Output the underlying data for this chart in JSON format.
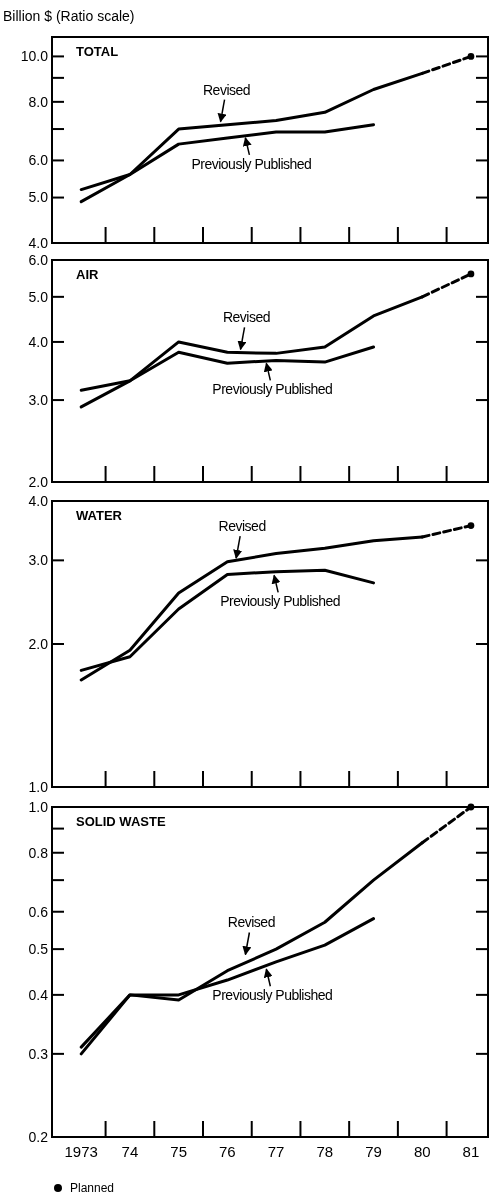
{
  "chart_data": [
    {
      "type": "line",
      "title": "TOTAL",
      "ylabel": "Billion $ (Ratio scale)",
      "log": true,
      "xlim": [
        1972.4,
        1981.35
      ],
      "ylim": [
        4,
        11
      ],
      "tick_labels": "y",
      "yticks": [
        {
          "value": 4,
          "label": "4.0"
        },
        {
          "value": 5,
          "label": "5.0"
        },
        {
          "value": 6,
          "label": "6.0"
        },
        {
          "value": 7,
          "label": null
        },
        {
          "value": 8,
          "label": "8.0"
        },
        {
          "value": 9,
          "label": null
        },
        {
          "value": 10,
          "label": "10.0"
        }
      ],
      "xticks": [
        {
          "value": 1973.5,
          "label": null
        },
        {
          "value": 1974.5,
          "label": null
        },
        {
          "value": 1975.5,
          "label": null
        },
        {
          "value": 1976.5,
          "label": null
        },
        {
          "value": 1977.5,
          "label": null
        },
        {
          "value": 1978.5,
          "label": null
        },
        {
          "value": 1979.5,
          "label": null
        },
        {
          "value": 1980.5,
          "label": null
        }
      ],
      "series": [
        {
          "type": "line",
          "color": "#000000",
          "x": [
            1973,
            1974,
            1975,
            1976,
            1977,
            1978,
            1979,
            1980
          ],
          "values": [
            4.9,
            5.6,
            7.0,
            7.15,
            7.3,
            7.6,
            8.5,
            9.2
          ]
        },
        {
          "type": "line",
          "color": "#000000",
          "x": [
            1973,
            1974,
            1975,
            1976,
            1977,
            1978,
            1979
          ],
          "values": [
            5.2,
            5.6,
            6.5,
            6.7,
            6.9,
            6.9,
            7.15
          ]
        },
        {
          "type": "line",
          "color": "#000000",
          "line_style": "dashed",
          "x": [
            1980,
            1981
          ],
          "values": [
            9.2,
            10.0
          ]
        },
        {
          "type": "scatter",
          "color": "#000000",
          "marker": "circle",
          "x": [
            1981
          ],
          "values": [
            10.0
          ]
        }
      ],
      "annotations": [
        {
          "text": "Revised",
          "x": 1975.86,
          "y": 7.15
        },
        {
          "text": "Previously Published",
          "x": 1976.37,
          "y": 6.8
        }
      ]
    },
    {
      "type": "line",
      "title": "AIR",
      "log": true,
      "xlim": [
        1972.4,
        1981.35
      ],
      "ylim": [
        2,
        6
      ],
      "tick_labels": "y",
      "yticks": [
        {
          "value": 2,
          "label": "2.0"
        },
        {
          "value": 3,
          "label": "3.0"
        },
        {
          "value": 4,
          "label": "4.0"
        },
        {
          "value": 5,
          "label": "5.0"
        },
        {
          "value": 6,
          "label": "6.0"
        }
      ],
      "xticks": [
        {
          "value": 1973.5,
          "label": null
        },
        {
          "value": 1974.5,
          "label": null
        },
        {
          "value": 1975.5,
          "label": null
        },
        {
          "value": 1976.5,
          "label": null
        },
        {
          "value": 1977.5,
          "label": null
        },
        {
          "value": 1978.5,
          "label": null
        },
        {
          "value": 1979.5,
          "label": null
        },
        {
          "value": 1980.5,
          "label": null
        }
      ],
      "series": [
        {
          "type": "line",
          "color": "#000000",
          "x": [
            1973,
            1974,
            1975,
            1976,
            1977,
            1978,
            1979,
            1980
          ],
          "values": [
            2.9,
            3.3,
            4.0,
            3.8,
            3.78,
            3.9,
            4.55,
            5.0
          ]
        },
        {
          "type": "line",
          "color": "#000000",
          "x": [
            1973,
            1974,
            1975,
            1976,
            1977,
            1978,
            1979
          ],
          "values": [
            3.15,
            3.3,
            3.8,
            3.6,
            3.65,
            3.62,
            3.9
          ]
        },
        {
          "type": "line",
          "color": "#000000",
          "line_style": "dashed",
          "x": [
            1980,
            1981
          ],
          "values": [
            5.0,
            5.6
          ]
        },
        {
          "type": "scatter",
          "color": "#000000",
          "marker": "circle",
          "x": [
            1981
          ],
          "values": [
            5.6
          ]
        }
      ],
      "annotations": [
        {
          "text": "Revised",
          "x": 1976.27,
          "y": 3.8
        },
        {
          "text": "Previously Published",
          "x": 1976.8,
          "y": 3.65
        }
      ]
    },
    {
      "type": "line",
      "title": "WATER",
      "log": true,
      "xlim": [
        1972.4,
        1981.35
      ],
      "ylim": [
        1,
        4
      ],
      "tick_labels": "y",
      "yticks": [
        {
          "value": 1,
          "label": "1.0"
        },
        {
          "value": 2,
          "label": "2.0"
        },
        {
          "value": 3,
          "label": "3.0"
        },
        {
          "value": 4,
          "label": "4.0"
        }
      ],
      "xticks": [
        {
          "value": 1973.5,
          "label": null
        },
        {
          "value": 1974.5,
          "label": null
        },
        {
          "value": 1975.5,
          "label": null
        },
        {
          "value": 1976.5,
          "label": null
        },
        {
          "value": 1977.5,
          "label": null
        },
        {
          "value": 1978.5,
          "label": null
        },
        {
          "value": 1979.5,
          "label": null
        },
        {
          "value": 1980.5,
          "label": null
        }
      ],
      "series": [
        {
          "type": "line",
          "color": "#000000",
          "x": [
            1973,
            1974,
            1975,
            1976,
            1977,
            1978,
            1979,
            1980
          ],
          "values": [
            1.68,
            1.94,
            2.56,
            2.98,
            3.1,
            3.18,
            3.3,
            3.36
          ]
        },
        {
          "type": "line",
          "color": "#000000",
          "x": [
            1973,
            1974,
            1975,
            1976,
            1977,
            1978,
            1979
          ],
          "values": [
            1.76,
            1.88,
            2.37,
            2.8,
            2.84,
            2.86,
            2.69
          ]
        },
        {
          "type": "line",
          "color": "#000000",
          "line_style": "dashed",
          "x": [
            1980,
            1981
          ],
          "values": [
            3.36,
            3.55
          ]
        },
        {
          "type": "scatter",
          "color": "#000000",
          "marker": "circle",
          "x": [
            1981
          ],
          "values": [
            3.55
          ]
        }
      ],
      "annotations": [
        {
          "text": "Revised",
          "x": 1976.18,
          "y": 2.99
        },
        {
          "text": "Previously Published",
          "x": 1976.96,
          "y": 2.83
        }
      ]
    },
    {
      "type": "line",
      "title": "SOLID WASTE",
      "log": true,
      "xlim": [
        1972.4,
        1981.35
      ],
      "ylim": [
        0.2,
        1.0
      ],
      "legend": "bottom left",
      "yticks": [
        {
          "value": 0.2,
          "label": "0.2"
        },
        {
          "value": 0.3,
          "label": "0.3"
        },
        {
          "value": 0.4,
          "label": "0.4"
        },
        {
          "value": 0.5,
          "label": "0.5"
        },
        {
          "value": 0.6,
          "label": "0.6"
        },
        {
          "value": 0.7,
          "label": null
        },
        {
          "value": 0.8,
          "label": "0.8"
        },
        {
          "value": 0.9,
          "label": null
        },
        {
          "value": 1.0,
          "label": "1.0"
        }
      ],
      "xticks": [
        {
          "value": 1973,
          "label": "1973"
        },
        {
          "value": 1973.5,
          "label": null
        },
        {
          "value": 1974,
          "label": "74"
        },
        {
          "value": 1974.5,
          "label": null
        },
        {
          "value": 1975,
          "label": "75"
        },
        {
          "value": 1975.5,
          "label": null
        },
        {
          "value": 1976,
          "label": "76"
        },
        {
          "value": 1976.5,
          "label": null
        },
        {
          "value": 1977,
          "label": "77"
        },
        {
          "value": 1977.5,
          "label": null
        },
        {
          "value": 1978,
          "label": "78"
        },
        {
          "value": 1978.5,
          "label": null
        },
        {
          "value": 1979,
          "label": "79"
        },
        {
          "value": 1979.5,
          "label": null
        },
        {
          "value": 1980,
          "label": "80"
        },
        {
          "value": 1980.5,
          "label": null
        },
        {
          "value": 1981,
          "label": "81"
        }
      ],
      "series": [
        {
          "type": "line",
          "color": "#000000",
          "x": [
            1973,
            1974,
            1975,
            1976,
            1977,
            1978,
            1979,
            1980
          ],
          "values": [
            0.3,
            0.4,
            0.39,
            0.45,
            0.5,
            0.57,
            0.7,
            0.84
          ]
        },
        {
          "type": "line",
          "color": "#000000",
          "x": [
            1973,
            1974,
            1975,
            1976,
            1977,
            1978,
            1979
          ],
          "values": [
            0.31,
            0.4,
            0.4,
            0.43,
            0.47,
            0.51,
            0.58
          ]
        },
        {
          "type": "line",
          "color": "#000000",
          "line_style": "dashed",
          "x": [
            1980,
            1981
          ],
          "values": [
            0.84,
            1.0
          ]
        },
        {
          "type": "scatter",
          "name": "Planned",
          "color": "#000000",
          "marker": "circle",
          "x": [
            1981
          ],
          "values": [
            1.0
          ]
        }
      ],
      "annotations": [
        {
          "text": "Revised",
          "x": 1976.37,
          "y": 0.48
        },
        {
          "text": "Previously Published",
          "x": 1976.8,
          "y": 0.46
        }
      ]
    }
  ]
}
